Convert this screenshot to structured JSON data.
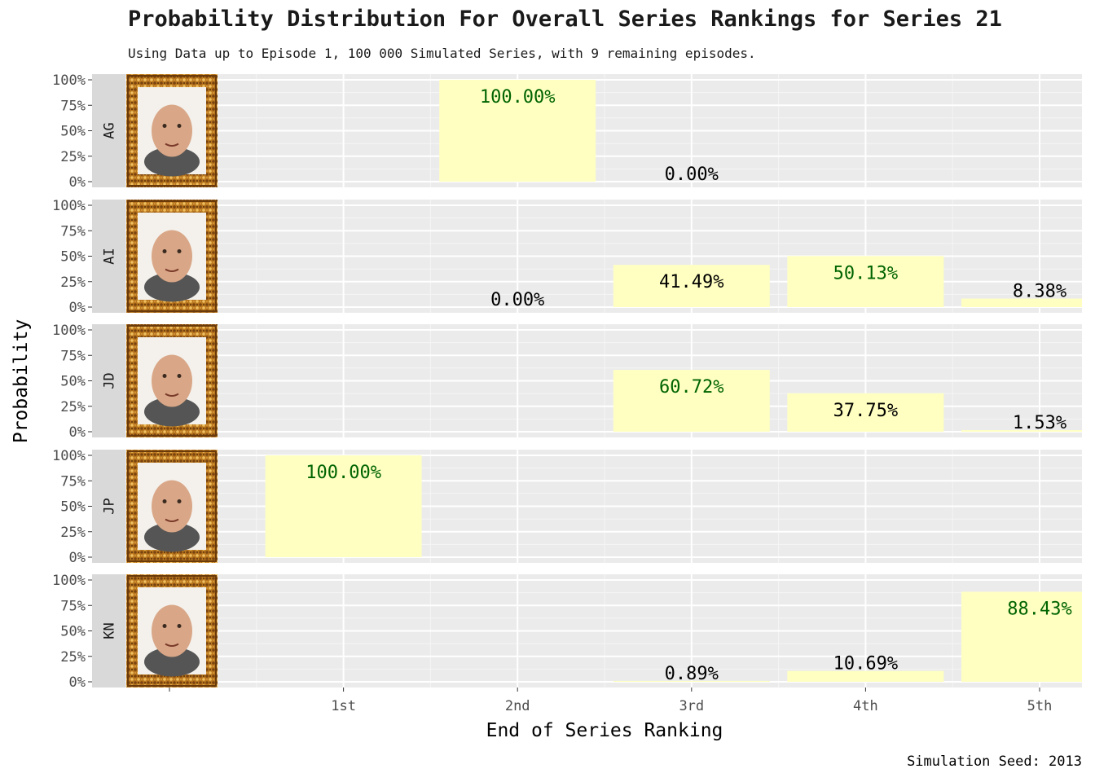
{
  "chart_data": {
    "type": "bar",
    "title": "Probability Distribution For Overall Series Rankings for Series 21",
    "subtitle": "Using Data up to Episode 1, 100 000 Simulated Series, with 9 remaining episodes.",
    "xlabel": "End of Series Ranking",
    "ylabel": "Probability",
    "caption": "Simulation Seed: 2013",
    "categories": [
      "1st",
      "2nd",
      "3rd",
      "4th",
      "5th"
    ],
    "y_ticks": [
      "0%",
      "25%",
      "50%",
      "75%",
      "100%"
    ],
    "ylim": [
      0,
      1
    ],
    "bar_color": "#ffffc2",
    "highlight_label_color": "#006400",
    "default_label_color": "#000000",
    "panels": [
      {
        "name": "AG",
        "bars": [
          {
            "category": "2nd",
            "value": 1.0,
            "label": "100.00%",
            "highlight": true
          },
          {
            "category": "3rd",
            "value": 0.0,
            "label": "0.00%",
            "highlight": false
          }
        ]
      },
      {
        "name": "AI",
        "bars": [
          {
            "category": "2nd",
            "value": 0.0,
            "label": "0.00%",
            "highlight": false
          },
          {
            "category": "3rd",
            "value": 0.4149,
            "label": "41.49%",
            "highlight": false
          },
          {
            "category": "4th",
            "value": 0.5013,
            "label": "50.13%",
            "highlight": true
          },
          {
            "category": "5th",
            "value": 0.0838,
            "label": "8.38%",
            "highlight": false
          }
        ]
      },
      {
        "name": "JD",
        "bars": [
          {
            "category": "3rd",
            "value": 0.6072,
            "label": "60.72%",
            "highlight": true
          },
          {
            "category": "4th",
            "value": 0.3775,
            "label": "37.75%",
            "highlight": false
          },
          {
            "category": "5th",
            "value": 0.0153,
            "label": "1.53%",
            "highlight": false
          }
        ]
      },
      {
        "name": "JP",
        "bars": [
          {
            "category": "1st",
            "value": 1.0,
            "label": "100.00%",
            "highlight": true
          }
        ]
      },
      {
        "name": "KN",
        "bars": [
          {
            "category": "3rd",
            "value": 0.0089,
            "label": "0.89%",
            "highlight": false
          },
          {
            "category": "4th",
            "value": 0.1069,
            "label": "10.69%",
            "highlight": false
          },
          {
            "category": "5th",
            "value": 0.8843,
            "label": "88.43%",
            "highlight": true
          }
        ]
      }
    ],
    "grid": true,
    "legend": "none"
  }
}
